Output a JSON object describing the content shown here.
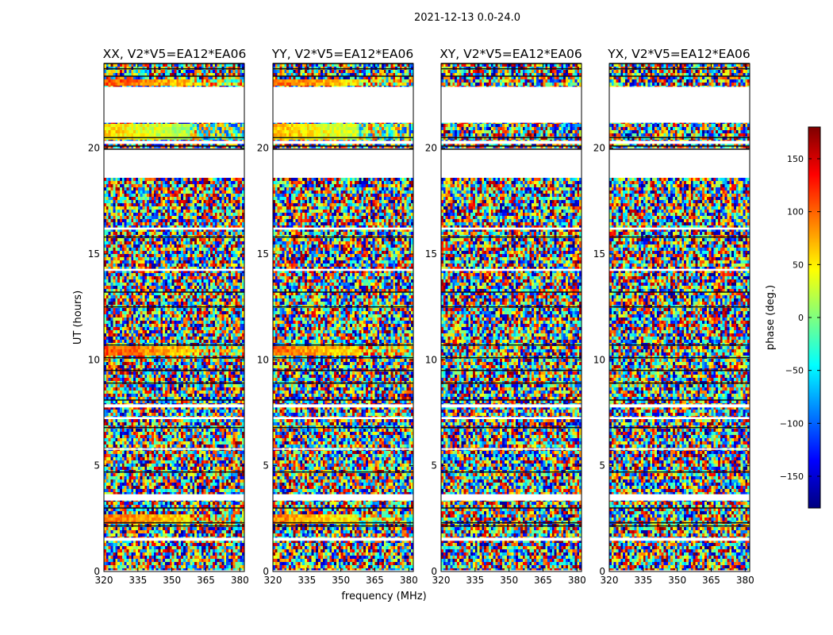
{
  "chart_data": {
    "type": "heatmap",
    "suptitle": "2021-12-13 0.0-24.0",
    "xlabel": "frequency (MHz)",
    "ylabel": "UT (hours)",
    "xlim": [
      320,
      382
    ],
    "ylim": [
      0,
      24
    ],
    "xticks": [
      320,
      335,
      350,
      365,
      380
    ],
    "yticks": [
      0,
      5,
      10,
      15,
      20
    ],
    "colorbar": {
      "label": "phase (deg.)",
      "colormap": "jet",
      "range": [
        -180,
        180
      ],
      "ticks": [
        150,
        100,
        50,
        0,
        -50,
        -100,
        -150
      ],
      "tick_labels": [
        "150",
        "100",
        "50",
        "0",
        "−50",
        "−100",
        "−150"
      ],
      "colors": [
        "#00007f",
        "#0000ff",
        "#007fff",
        "#00ffff",
        "#7fff7f",
        "#ffff00",
        "#ff7f00",
        "#ff0000",
        "#7f0000"
      ]
    },
    "panels": [
      {
        "title": "XX, V2*V5=EA12*EA06",
        "polarization": "XX",
        "baseline": "V2*V5=EA12*EA06",
        "coherent_bands": [
          [
            2.2,
            2.7,
            100
          ],
          [
            10.2,
            10.6,
            110
          ],
          [
            20.4,
            21.2,
            60
          ],
          [
            22.9,
            23.2,
            110
          ]
        ]
      },
      {
        "title": "YY, V2*V5=EA12*EA06",
        "polarization": "YY",
        "baseline": "V2*V5=EA12*EA06",
        "coherent_bands": [
          [
            2.2,
            2.7,
            90
          ],
          [
            10.2,
            10.6,
            100
          ],
          [
            20.4,
            21.2,
            70
          ],
          [
            22.9,
            23.2,
            100
          ]
        ]
      },
      {
        "title": "XY, V2*V5=EA12*EA06",
        "polarization": "XY",
        "baseline": "V2*V5=EA12*EA06",
        "coherent_bands": []
      },
      {
        "title": "YX, V2*V5=EA12*EA06",
        "polarization": "YX",
        "baseline": "V2*V5=EA12*EA06",
        "coherent_bands": []
      }
    ],
    "blank_ut_ranges": [
      [
        0.0,
        0.06
      ],
      [
        1.45,
        1.6
      ],
      [
        3.35,
        3.65
      ],
      [
        5.75,
        5.82
      ],
      [
        7.2,
        7.3
      ],
      [
        7.75,
        7.9
      ],
      [
        14.2,
        14.3
      ],
      [
        16.15,
        16.25
      ],
      [
        18.6,
        20.0
      ],
      [
        20.2,
        20.35
      ],
      [
        21.2,
        22.9
      ]
    ],
    "dark_ut_lines": [
      2.15,
      2.3,
      3.0,
      4.7,
      6.8,
      8.1,
      8.9,
      9.5,
      10.1,
      10.7,
      12.5,
      13.2,
      15.8,
      19.95,
      20.1,
      20.5,
      23.4,
      23.75,
      24.0
    ]
  }
}
